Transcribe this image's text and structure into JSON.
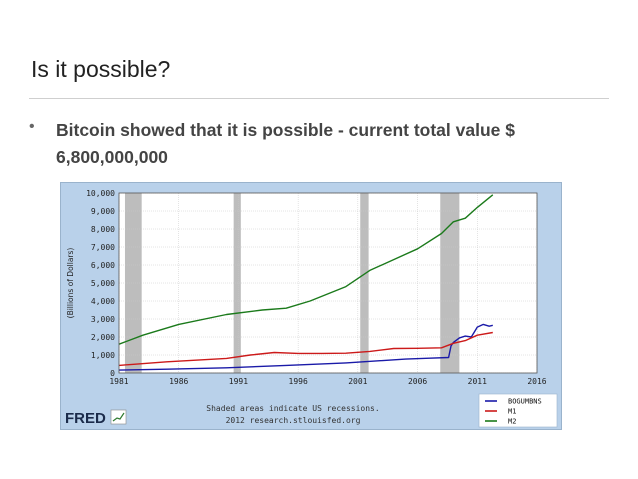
{
  "slide": {
    "title": "Is it possible?",
    "bullet": "Bitcoin showed that it is possible - current total value $ 6,800,000,000"
  },
  "chart_data": {
    "type": "line",
    "ylabel": "(Billions of Dollars)",
    "xlim": [
      1981,
      2016
    ],
    "ylim": [
      0,
      10000
    ],
    "xticks": [
      1981,
      1986,
      1991,
      1996,
      2001,
      2006,
      2011,
      2016
    ],
    "yticks": [
      0,
      1000,
      2000,
      3000,
      4000,
      5000,
      6000,
      7000,
      8000,
      9000,
      10000
    ],
    "ytick_labels": [
      "0",
      "1,000",
      "2,000",
      "3,000",
      "4,000",
      "5,000",
      "6,000",
      "7,000",
      "8,000",
      "9,000",
      "10,000"
    ],
    "grid": true,
    "recessions": [
      [
        1981.5,
        1982.9
      ],
      [
        1990.6,
        1991.2
      ],
      [
        2001.2,
        2001.9
      ],
      [
        2007.9,
        2009.5
      ]
    ],
    "note": "Shaded areas indicate US recessions.",
    "source": "2012 research.stlouisfed.org",
    "brand": "FRED",
    "legend_position": "bottom-right",
    "series": [
      {
        "name": "BOGUMBNS",
        "color": "#1a1aa8",
        "x": [
          1981,
          1985,
          1990,
          1995,
          2000,
          2005,
          2007,
          2008.6,
          2008.8,
          2009,
          2009.5,
          2010,
          2010.5,
          2011,
          2011.5,
          2012,
          2012.3
        ],
        "y": [
          160,
          210,
          290,
          420,
          560,
          770,
          820,
          860,
          1500,
          1700,
          1950,
          2050,
          2000,
          2550,
          2700,
          2600,
          2650
        ]
      },
      {
        "name": "M1",
        "color": "#cc1a1a",
        "x": [
          1981,
          1985,
          1990,
          1992,
          1994,
          1996,
          1998,
          2000,
          2002,
          2004,
          2006,
          2008,
          2009,
          2010,
          2011,
          2012.3
        ],
        "y": [
          420,
          620,
          810,
          1000,
          1140,
          1090,
          1090,
          1100,
          1200,
          1360,
          1370,
          1400,
          1650,
          1800,
          2100,
          2250
        ]
      },
      {
        "name": "M2",
        "color": "#1b7a1b",
        "x": [
          1981,
          1983,
          1986,
          1990,
          1993,
          1995,
          1997,
          2000,
          2002,
          2004,
          2006,
          2008,
          2009,
          2010,
          2011,
          2012.3
        ],
        "y": [
          1600,
          2100,
          2700,
          3250,
          3500,
          3600,
          4000,
          4800,
          5700,
          6300,
          6900,
          7750,
          8400,
          8600,
          9200,
          9900
        ]
      }
    ]
  }
}
